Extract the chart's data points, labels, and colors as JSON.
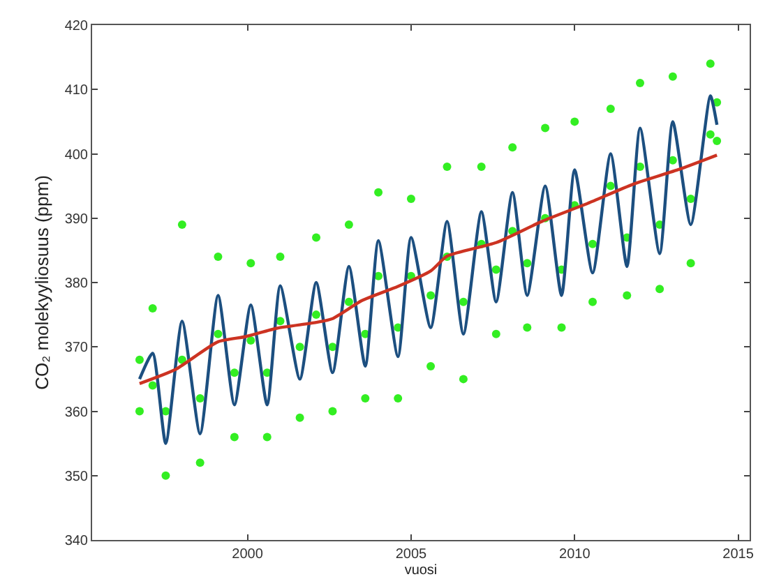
{
  "chart_data": {
    "type": "line",
    "xlabel": "vuosi",
    "ylabel": "CO₂ molekyyliosuus (ppm)",
    "xlim": [
      1995.25,
      2015.35
    ],
    "ylim": [
      340,
      420
    ],
    "xticks": [
      2000,
      2005,
      2010,
      2015
    ],
    "yticks": [
      340,
      350,
      360,
      370,
      380,
      390,
      400,
      410,
      420
    ],
    "series": [
      {
        "type": "scatter",
        "marker": "circle",
        "color": "#33ee22",
        "x": [
          1996.7,
          1996.7,
          1997.1,
          1997.1,
          1997.5,
          1997.5,
          1998.0,
          1998.0,
          1998.55,
          1998.55,
          1999.1,
          1999.1,
          1999.6,
          1999.6,
          2000.1,
          2000.1,
          2000.6,
          2000.6,
          2001.0,
          2001.0,
          2001.6,
          2001.6,
          2002.1,
          2002.1,
          2002.6,
          2002.6,
          2003.1,
          2003.1,
          2003.6,
          2003.6,
          2004.0,
          2004.0,
          2004.6,
          2004.6,
          2005.0,
          2005.0,
          2005.6,
          2005.6,
          2006.1,
          2006.1,
          2006.6,
          2006.6,
          2007.15,
          2007.15,
          2007.6,
          2007.6,
          2008.1,
          2008.1,
          2008.55,
          2008.55,
          2009.1,
          2009.1,
          2009.6,
          2009.6,
          2010.0,
          2010.0,
          2010.55,
          2010.55,
          2011.1,
          2011.1,
          2011.6,
          2011.6,
          2012.0,
          2012.0,
          2012.6,
          2012.6,
          2013.0,
          2013.0,
          2013.55,
          2013.55,
          2014.15,
          2014.15,
          2014.35,
          2014.35
        ],
        "values": [
          368,
          360,
          376,
          364,
          350,
          360,
          389,
          368,
          352,
          362,
          384,
          372,
          356,
          366,
          383,
          371,
          356,
          366,
          384,
          374,
          359,
          370,
          387,
          375,
          360,
          370,
          389,
          377,
          362,
          372,
          394,
          381,
          362,
          373,
          393,
          381,
          367,
          378,
          398,
          384,
          365,
          377,
          398,
          386,
          372,
          382,
          401,
          388,
          373,
          383,
          404,
          390,
          373,
          382,
          405,
          392,
          377,
          386,
          407,
          395,
          378,
          387,
          411,
          398,
          379,
          389,
          412,
          399,
          383,
          393,
          414,
          403,
          408,
          402
        ]
      },
      {
        "marker": "none",
        "color": "#1c4f80",
        "x": [
          1996.7,
          1997.1,
          1997.5,
          1998.0,
          1998.55,
          1999.1,
          1999.6,
          2000.1,
          2000.6,
          2001.0,
          2001.6,
          2002.1,
          2002.6,
          2003.1,
          2003.6,
          2004.0,
          2004.6,
          2005.0,
          2005.6,
          2006.1,
          2006.6,
          2007.15,
          2007.6,
          2008.1,
          2008.55,
          2009.1,
          2009.6,
          2010.0,
          2010.55,
          2011.1,
          2011.6,
          2012.0,
          2012.6,
          2013.0,
          2013.55,
          2014.15,
          2014.35
        ],
        "values": [
          365,
          369,
          355,
          374,
          356.5,
          378,
          361,
          376.5,
          361,
          379.5,
          365,
          380,
          366,
          382.5,
          367,
          386.5,
          368.5,
          387,
          373,
          389.5,
          372,
          391,
          377,
          394,
          378,
          395,
          378,
          397.5,
          381.5,
          400,
          382.5,
          404,
          384.5,
          405,
          389,
          409,
          404.5
        ]
      },
      {
        "marker": "none",
        "color": "#cc3322",
        "x": [
          1996.7,
          1997.8,
          1999.1,
          1999.95,
          2000.9,
          2002.1,
          2002.6,
          2003.5,
          2004.6,
          2005.6,
          2006.1,
          2007.6,
          2009.0,
          2010.4,
          2011.8,
          2013.2,
          2014.35
        ],
        "values": [
          364.3,
          366.5,
          370.8,
          371.6,
          372.9,
          373.8,
          374.4,
          377.2,
          379.4,
          381.8,
          384.1,
          386.2,
          389.5,
          392.3,
          395.3,
          397.6,
          399.8
        ]
      }
    ]
  }
}
